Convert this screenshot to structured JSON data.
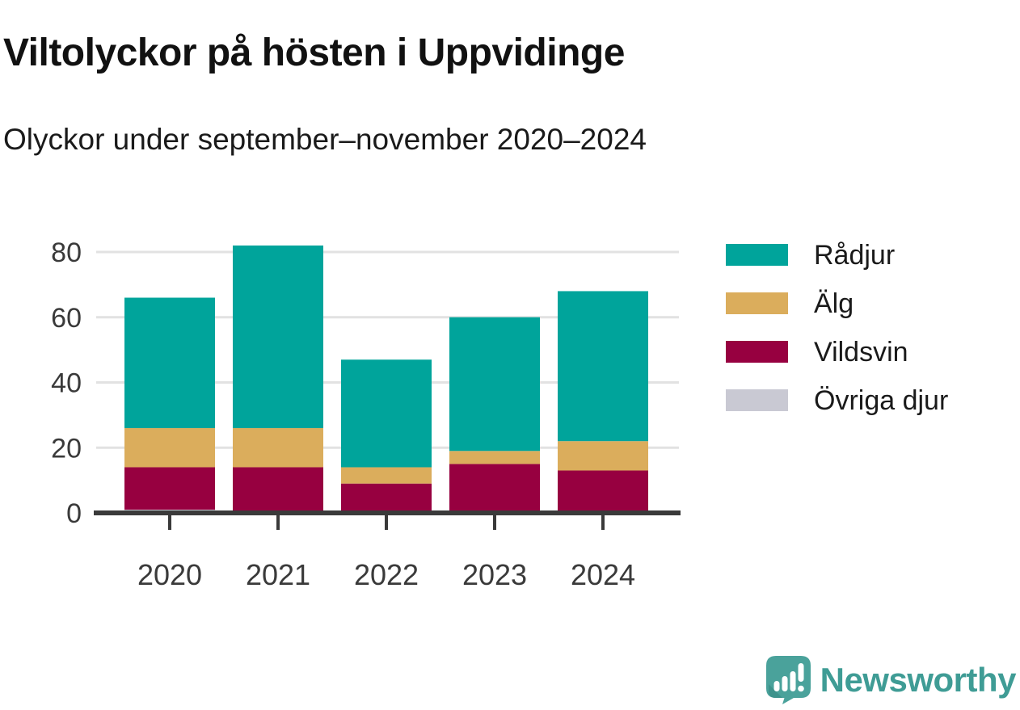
{
  "chart_data": {
    "type": "bar",
    "stacked": true,
    "title": "Viltolyckor på hösten i Uppvidinge",
    "subtitle": "Olyckor under september–november 2020–2024",
    "categories": [
      "2020",
      "2021",
      "2022",
      "2023",
      "2024"
    ],
    "series": [
      {
        "name": "Rådjur",
        "color": "#00A49B",
        "values": [
          40,
          56,
          33,
          41,
          46
        ]
      },
      {
        "name": "Älg",
        "color": "#DBAD5C",
        "values": [
          12,
          12,
          5,
          4,
          9
        ]
      },
      {
        "name": "Vildsvin",
        "color": "#970040",
        "values": [
          13,
          14,
          9,
          15,
          13
        ]
      },
      {
        "name": "Övriga djur",
        "color": "#C9C9D3",
        "values": [
          1,
          0,
          0,
          0,
          0
        ]
      }
    ],
    "stack_order_bottom_to_top": [
      "Övriga djur",
      "Vildsvin",
      "Älg",
      "Rådjur"
    ],
    "totals": [
      66,
      82,
      47,
      60,
      68
    ],
    "xlabel": "",
    "ylabel": "",
    "ylim": [
      0,
      80
    ],
    "yticks": [
      0,
      20,
      40,
      60,
      80
    ],
    "grid": true,
    "legend_position": "right"
  },
  "colors": {
    "gridline": "#E2E2E2",
    "axis": "#3A3A3A",
    "tick_label": "#3A3A3A",
    "title_text": "#111111",
    "legend_text": "#1A1A1A",
    "brand_teal": "#3F9C95",
    "logo_background": "#4AA29B",
    "logo_shade": "#3D938C"
  },
  "footer": {
    "brand": "Newsworthy"
  }
}
